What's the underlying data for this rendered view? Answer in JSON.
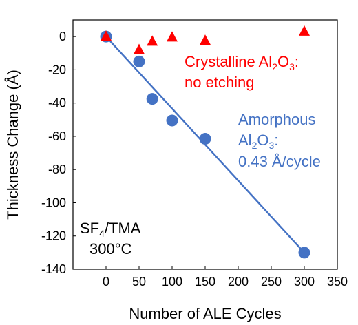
{
  "chart_data": {
    "type": "scatter",
    "title": "",
    "xlabel": "Number of ALE Cycles",
    "ylabel": "Thickness Change (Å)",
    "xlim": [
      -50,
      350
    ],
    "ylim": [
      -140,
      10
    ],
    "x_ticks": [
      0,
      50,
      100,
      150,
      200,
      250,
      300,
      350
    ],
    "y_ticks": [
      0,
      -20,
      -40,
      -60,
      -80,
      -100,
      -120,
      -140
    ],
    "grid": false,
    "legend": "none",
    "series": [
      {
        "marker": "triangle",
        "color": "#ff0000",
        "points": [
          [
            0,
            0
          ],
          [
            50,
            -8
          ],
          [
            70,
            -3
          ],
          [
            100,
            -0.5
          ],
          [
            150,
            -2.5
          ],
          [
            300,
            3
          ]
        ]
      },
      {
        "marker": "circle",
        "color": "#4472c4",
        "points": [
          [
            0,
            0
          ],
          [
            50,
            -15
          ],
          [
            70,
            -37.5
          ],
          [
            100,
            -50.5
          ],
          [
            150,
            -61.5
          ],
          [
            300,
            -130
          ]
        ]
      }
    ],
    "fit_lines": [
      {
        "color": "#4472c4",
        "from": [
          0,
          0
        ],
        "to": [
          300,
          -130
        ]
      }
    ],
    "annotations": {
      "crystalline_line1_pre": "Crystalline Al",
      "crystalline_sub1": "2",
      "crystalline_mid": "O",
      "crystalline_sub2": "3",
      "crystalline_post": ":",
      "crystalline_line2": "no etching",
      "amorphous_line1": "Amorphous",
      "amorphous_line2_pre": "Al",
      "amorphous_sub1": "2",
      "amorphous_mid": "O",
      "amorphous_sub2": "3",
      "amorphous_post": ":",
      "amorphous_line3": "0.43 Å/cycle",
      "cond_pre": "SF",
      "cond_sub": "4",
      "cond_post": "/TMA",
      "cond_line2": "300°C"
    },
    "colors": {
      "crystalline": "#ff0000",
      "amorphous": "#4472c4"
    }
  }
}
